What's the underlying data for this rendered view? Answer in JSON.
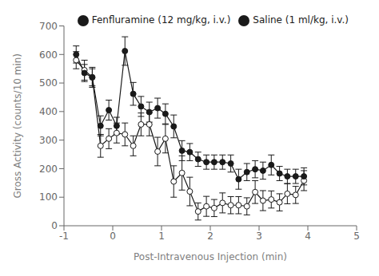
{
  "chart_data": {
    "type": "line",
    "x_label": "Post-Intravenous Injection (min)",
    "y_label": "Gross Activity (counts/10 min)",
    "xlim": [
      -1,
      5
    ],
    "xticks": [
      -1,
      0,
      1,
      2,
      3,
      4,
      5
    ],
    "ylim": [
      0,
      700
    ],
    "yticks": [
      0,
      100,
      200,
      300,
      400,
      500,
      600,
      700
    ],
    "grid": false,
    "legend": "upper right",
    "x": [
      -0.75,
      -0.58,
      -0.42,
      -0.25,
      -0.08,
      0.08,
      0.25,
      0.42,
      0.58,
      0.75,
      0.92,
      1.08,
      1.25,
      1.42,
      1.58,
      1.75,
      1.92,
      2.08,
      2.25,
      2.42,
      2.58,
      2.75,
      2.92,
      3.08,
      3.25,
      3.42,
      3.58,
      3.75,
      3.92
    ],
    "series": [
      {
        "name": "Saline (1 ml/kg, i.v.)",
        "color": "#1a1a1a",
        "marker": "open_circle",
        "line_style": "solid",
        "values": [
          580,
          545,
          520,
          280,
          305,
          325,
          320,
          280,
          355,
          355,
          260,
          305,
          155,
          185,
          120,
          50,
          68,
          62,
          80,
          72,
          72,
          68,
          118,
          88,
          92,
          82,
          112,
          108,
          158
        ],
        "errors": [
          30,
          35,
          30,
          40,
          35,
          35,
          40,
          35,
          40,
          40,
          50,
          50,
          55,
          60,
          50,
          30,
          35,
          30,
          35,
          30,
          30,
          30,
          40,
          35,
          30,
          30,
          35,
          30,
          35
        ]
      },
      {
        "name": "Fenfluramine (12 mg/kg, i.v.)",
        "color": "#1a1a1a",
        "marker": "circle",
        "line_style": "solid",
        "values": [
          600,
          535,
          520,
          350,
          405,
          350,
          612,
          462,
          418,
          398,
          412,
          392,
          348,
          263,
          258,
          233,
          223,
          223,
          223,
          218,
          163,
          188,
          198,
          193,
          213,
          183,
          173,
          173,
          173
        ],
        "errors": [
          30,
          30,
          35,
          35,
          35,
          30,
          50,
          40,
          35,
          35,
          35,
          35,
          40,
          35,
          30,
          25,
          25,
          25,
          25,
          30,
          35,
          30,
          30,
          30,
          35,
          25,
          25,
          25,
          30
        ]
      }
    ]
  }
}
